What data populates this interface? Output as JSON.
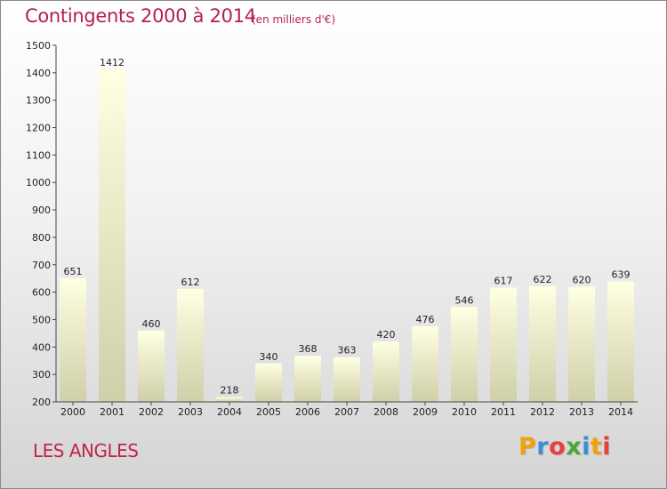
{
  "header": {
    "title": "Contingents 2000 à 2014",
    "unit": "(en milliers d'€)"
  },
  "footer": {
    "place": "LES ANGLES",
    "logo": "Proxiti",
    "logo_colors": [
      "#f0a20b",
      "#3b8fd6",
      "#e8403a",
      "#4aa83c",
      "#3b8fd6",
      "#f0a20b",
      "#e8403a"
    ]
  },
  "colors": {
    "title": "#b5204f",
    "bar_top": "#ffffe2",
    "bar_bottom": "#cfcfa9",
    "axis": "#444444"
  },
  "chart_data": {
    "type": "bar",
    "title": "Contingents 2000 à 2014",
    "subtitle": "(en milliers d'€)",
    "xlabel": "",
    "ylabel": "",
    "categories": [
      "2000",
      "2001",
      "2002",
      "2003",
      "2004",
      "2005",
      "2006",
      "2007",
      "2008",
      "2009",
      "2010",
      "2011",
      "2012",
      "2013",
      "2014"
    ],
    "values": [
      651,
      1412,
      460,
      612,
      218,
      340,
      368,
      363,
      420,
      476,
      546,
      617,
      622,
      620,
      639
    ],
    "ylim": [
      200,
      1500
    ],
    "yticks": [
      200,
      300,
      400,
      500,
      600,
      700,
      800,
      900,
      1000,
      1100,
      1200,
      1300,
      1400,
      1500
    ],
    "grid": false,
    "legend": "none"
  }
}
